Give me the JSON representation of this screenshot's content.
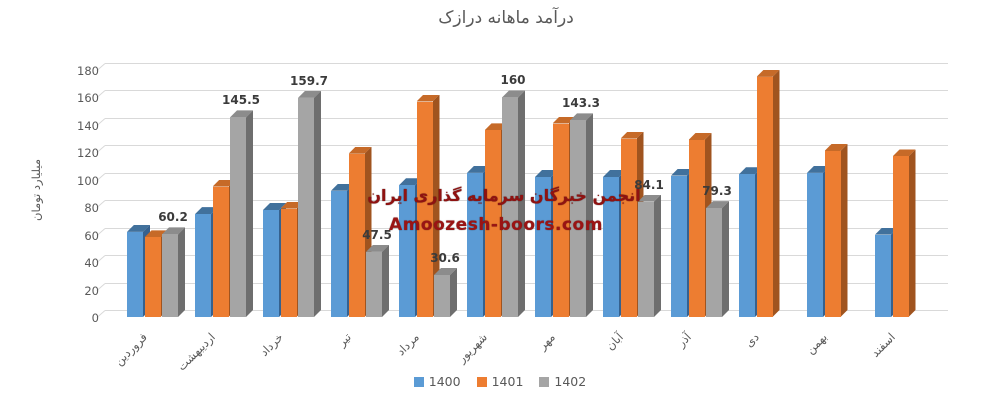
{
  "title": "درآمد ماهانه درازک",
  "watermark": {
    "line1": "انجمن خبرگان سرمایه گذاری ایران",
    "line2": "Amoozesh-boors.com"
  },
  "colors": {
    "gridline": "#d9d9d9",
    "axis_text": "#595959",
    "data_label_text": "#3b3b3b",
    "watermark_red": "#9a1414",
    "series_blue": "#5B9BD5",
    "series_orange": "#ED7D31",
    "series_gray": "#A5A5A5"
  },
  "chart_data": {
    "type": "bar",
    "title": "درآمد ماهانه درازک",
    "ylabel": "میلیارد تومان",
    "xlabel": "",
    "ylim": [
      0,
      180
    ],
    "ytick_step": 20,
    "y_ticks": [
      "0",
      "20",
      "40",
      "60",
      "80",
      "100",
      "120",
      "140",
      "160",
      "180"
    ],
    "grid": true,
    "legend_position": "bottom",
    "effect": "3d-clustered-column",
    "categories": [
      "فروردین",
      "اردیبهشت",
      "خرداد",
      "تیر",
      "مرداد",
      "شهریور",
      "مهر",
      "آبان",
      "آذر",
      "دی",
      "بهمن",
      "اسفند"
    ],
    "series": [
      {
        "name": "1400",
        "color": "#5B9BD5",
        "top_color": "#41719C",
        "side_color": "#36618E",
        "values": [
          62,
          75,
          78,
          92,
          96,
          105,
          102,
          102,
          103,
          104,
          105,
          60
        ]
      },
      {
        "name": "1401",
        "color": "#ED7D31",
        "top_color": "#C66A28",
        "side_color": "#A0541F",
        "values": [
          58,
          95,
          79,
          119,
          157,
          136,
          141,
          130,
          129,
          175,
          121,
          117
        ]
      },
      {
        "name": "1402",
        "color": "#A5A5A5",
        "top_color": "#8C8C8C",
        "side_color": "#6E6E6E",
        "values": [
          60.2,
          145.5,
          159.7,
          47.5,
          30.6,
          160,
          143.3,
          84.1,
          79.3,
          null,
          null,
          null
        ],
        "data_labels": [
          "60.2",
          "145.5",
          "159.7",
          "47.5",
          "30.6",
          "160",
          "143.3",
          "84.1",
          "79.3",
          "",
          "",
          ""
        ]
      }
    ]
  }
}
